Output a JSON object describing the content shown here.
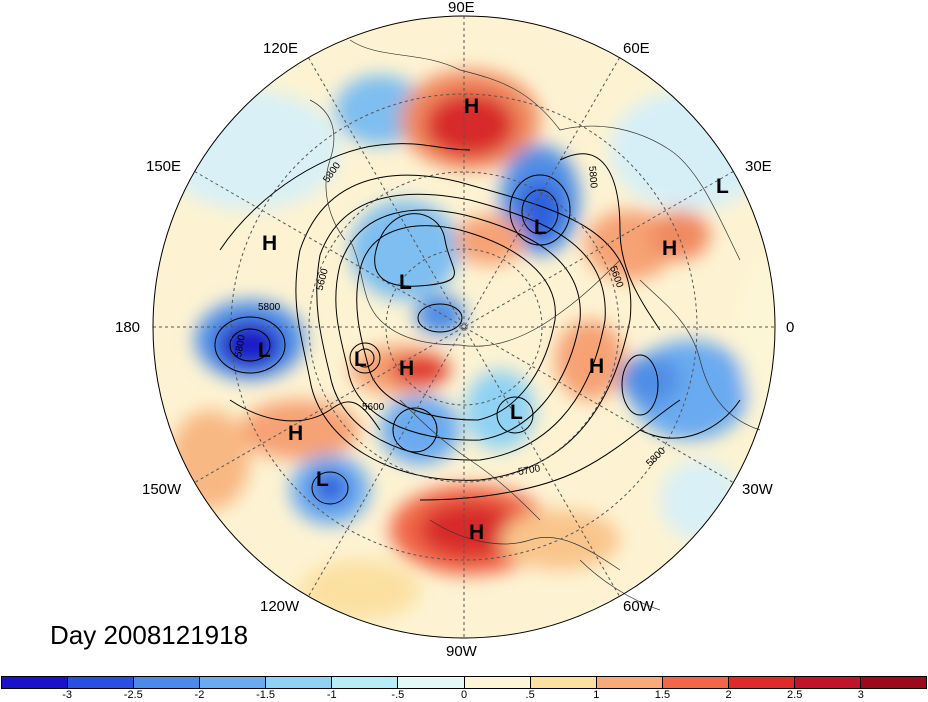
{
  "title": "Day 2008121918",
  "longitude_labels": {
    "90E": "90E",
    "60E": "60E",
    "120E": "120E",
    "30E": "30E",
    "150E": "150E",
    "0": "0",
    "180": "180",
    "30W": "30W",
    "150W": "150W",
    "60W": "60W",
    "120W": "120W",
    "90W": "90W"
  },
  "pressure_systems": [
    {
      "label": "H"
    },
    {
      "label": "L"
    },
    {
      "label": "L"
    },
    {
      "label": "H"
    },
    {
      "label": "L"
    },
    {
      "label": "H"
    },
    {
      "label": "L"
    },
    {
      "label": "L"
    },
    {
      "label": "H"
    },
    {
      "label": "H"
    },
    {
      "label": "L"
    },
    {
      "label": "H"
    },
    {
      "label": "L"
    },
    {
      "label": "H"
    }
  ],
  "contour_labels": [
    "5800",
    "5800",
    "5600",
    "5800",
    "5600",
    "5800",
    "5700",
    "5800",
    "5600"
  ],
  "colorbar": {
    "colors": [
      "#1a12c8",
      "#2a4fe0",
      "#4a8ae8",
      "#6aaaf0",
      "#8fd2f4",
      "#b8ecf6",
      "#e4f8f8",
      "#fdf6d6",
      "#fce0a2",
      "#f8aa78",
      "#f06848",
      "#de2a2a",
      "#c01428",
      "#9a0a1c"
    ],
    "ticks": [
      "-3",
      "-2.5",
      "-2",
      "-1.5",
      "-1",
      "-.5",
      "0",
      ".5",
      "1",
      "1.5",
      "2",
      "2.5",
      "3"
    ]
  }
}
